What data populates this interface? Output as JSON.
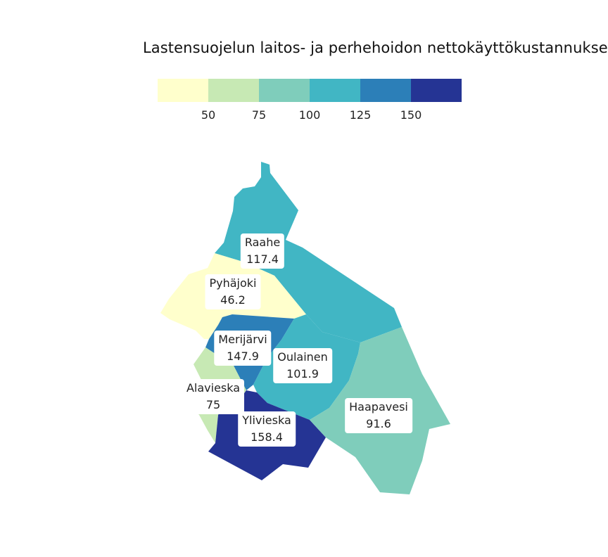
{
  "title": "Lastensuojelun laitos- ja perhehoidon nettokäyttökustannukset",
  "legend": {
    "breaks": [
      25,
      50,
      75,
      100,
      125,
      150,
      175
    ],
    "colors": [
      "#ffffcc",
      "#c7e9b4",
      "#7fcdbb",
      "#41b6c4",
      "#2c7fb8",
      "#253494"
    ],
    "tick_labels": [
      "50",
      "75",
      "100",
      "125",
      "150"
    ]
  },
  "regions": [
    {
      "name": "Raahe",
      "value": "117.4",
      "color": "#41b6c4"
    },
    {
      "name": "Pyhäjoki",
      "value": "46.2",
      "color": "#ffffcc"
    },
    {
      "name": "Merijärvi",
      "value": "147.9",
      "color": "#2c7fb8"
    },
    {
      "name": "Oulainen",
      "value": "101.9",
      "color": "#41b6c4"
    },
    {
      "name": "Alavieska",
      "value": "75",
      "color": "#c7e9b4"
    },
    {
      "name": "Ylivieska",
      "value": "158.4",
      "color": "#253494"
    },
    {
      "name": "Haapavesi",
      "value": "91.6",
      "color": "#7fcdbb"
    }
  ]
}
